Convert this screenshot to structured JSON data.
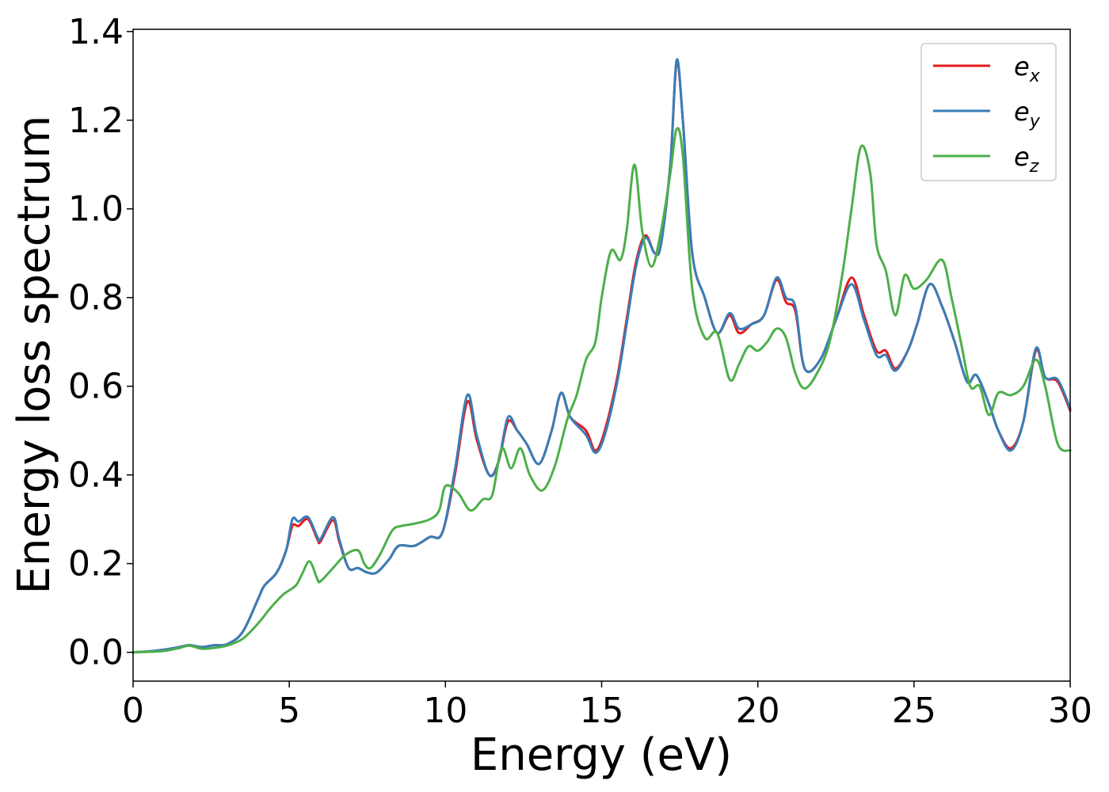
{
  "chart_data": {
    "type": "line",
    "xlabel": "Energy (eV)",
    "ylabel": "Energy loss spectrum",
    "xlim": [
      0,
      30
    ],
    "ylim": [
      -0.065,
      1.405
    ],
    "xticks": [
      0,
      5,
      10,
      15,
      20,
      25,
      30
    ],
    "xtick_labels": [
      "0",
      "5",
      "10",
      "15",
      "20",
      "25",
      "30"
    ],
    "yticks": [
      0.0,
      0.2,
      0.4,
      0.6,
      0.8,
      1.0,
      1.2,
      1.4
    ],
    "ytick_labels": [
      "0.0",
      "0.2",
      "0.4",
      "0.6",
      "0.8",
      "1.0",
      "1.2",
      "1.4"
    ],
    "grid": false,
    "legend_position": "top-right",
    "series": [
      {
        "name": "e_x",
        "legend_base": "e",
        "legend_sub": "x",
        "color": "#e41a1c",
        "points": [
          [
            0,
            0
          ],
          [
            0.5,
            0.002
          ],
          [
            1.0,
            0.006
          ],
          [
            1.5,
            0.012
          ],
          [
            1.8,
            0.016
          ],
          [
            2.2,
            0.012
          ],
          [
            2.6,
            0.016
          ],
          [
            3.0,
            0.018
          ],
          [
            3.5,
            0.045
          ],
          [
            4.0,
            0.12
          ],
          [
            4.2,
            0.15
          ],
          [
            4.6,
            0.18
          ],
          [
            4.9,
            0.23
          ],
          [
            5.1,
            0.285
          ],
          [
            5.3,
            0.285
          ],
          [
            5.6,
            0.3
          ],
          [
            5.9,
            0.255
          ],
          [
            6.0,
            0.25
          ],
          [
            6.4,
            0.298
          ],
          [
            6.6,
            0.25
          ],
          [
            6.9,
            0.19
          ],
          [
            7.2,
            0.19
          ],
          [
            7.5,
            0.18
          ],
          [
            7.8,
            0.18
          ],
          [
            8.2,
            0.21
          ],
          [
            8.5,
            0.24
          ],
          [
            9.0,
            0.24
          ],
          [
            9.5,
            0.26
          ],
          [
            9.9,
            0.27
          ],
          [
            10.3,
            0.4
          ],
          [
            10.7,
            0.565
          ],
          [
            11.0,
            0.48
          ],
          [
            11.4,
            0.4
          ],
          [
            11.7,
            0.43
          ],
          [
            12.0,
            0.52
          ],
          [
            12.3,
            0.5
          ],
          [
            12.6,
            0.47
          ],
          [
            13.0,
            0.425
          ],
          [
            13.4,
            0.5
          ],
          [
            13.7,
            0.585
          ],
          [
            14.0,
            0.53
          ],
          [
            14.5,
            0.5
          ],
          [
            14.8,
            0.455
          ],
          [
            15.1,
            0.5
          ],
          [
            15.5,
            0.62
          ],
          [
            15.8,
            0.75
          ],
          [
            16.1,
            0.88
          ],
          [
            16.4,
            0.94
          ],
          [
            16.7,
            0.9
          ],
          [
            16.9,
            0.92
          ],
          [
            17.2,
            1.1
          ],
          [
            17.4,
            1.33
          ],
          [
            17.6,
            1.2
          ],
          [
            17.9,
            0.9
          ],
          [
            18.3,
            0.8
          ],
          [
            18.7,
            0.72
          ],
          [
            19.1,
            0.76
          ],
          [
            19.4,
            0.72
          ],
          [
            19.8,
            0.74
          ],
          [
            20.2,
            0.76
          ],
          [
            20.6,
            0.84
          ],
          [
            20.9,
            0.79
          ],
          [
            21.2,
            0.77
          ],
          [
            21.5,
            0.64
          ],
          [
            22.0,
            0.66
          ],
          [
            22.5,
            0.75
          ],
          [
            23.0,
            0.845
          ],
          [
            23.4,
            0.76
          ],
          [
            23.8,
            0.68
          ],
          [
            24.1,
            0.68
          ],
          [
            24.4,
            0.64
          ],
          [
            24.8,
            0.68
          ],
          [
            25.1,
            0.74
          ],
          [
            25.5,
            0.83
          ],
          [
            25.9,
            0.78
          ],
          [
            26.3,
            0.7
          ],
          [
            26.7,
            0.61
          ],
          [
            27.0,
            0.625
          ],
          [
            27.4,
            0.56
          ],
          [
            27.7,
            0.5
          ],
          [
            28.1,
            0.46
          ],
          [
            28.5,
            0.52
          ],
          [
            28.9,
            0.68
          ],
          [
            29.2,
            0.62
          ],
          [
            29.6,
            0.61
          ],
          [
            30.0,
            0.545
          ]
        ]
      },
      {
        "name": "e_y",
        "legend_base": "e",
        "legend_sub": "y",
        "color": "#377eb8",
        "points": [
          [
            0,
            0
          ],
          [
            0.5,
            0.002
          ],
          [
            1.0,
            0.006
          ],
          [
            1.5,
            0.012
          ],
          [
            1.8,
            0.016
          ],
          [
            2.2,
            0.012
          ],
          [
            2.6,
            0.016
          ],
          [
            3.0,
            0.018
          ],
          [
            3.5,
            0.045
          ],
          [
            4.0,
            0.12
          ],
          [
            4.2,
            0.15
          ],
          [
            4.6,
            0.18
          ],
          [
            4.9,
            0.23
          ],
          [
            5.1,
            0.3
          ],
          [
            5.3,
            0.295
          ],
          [
            5.6,
            0.305
          ],
          [
            5.9,
            0.26
          ],
          [
            6.0,
            0.255
          ],
          [
            6.4,
            0.305
          ],
          [
            6.6,
            0.255
          ],
          [
            6.9,
            0.19
          ],
          [
            7.2,
            0.19
          ],
          [
            7.5,
            0.18
          ],
          [
            7.8,
            0.18
          ],
          [
            8.2,
            0.21
          ],
          [
            8.5,
            0.24
          ],
          [
            9.0,
            0.24
          ],
          [
            9.5,
            0.26
          ],
          [
            9.9,
            0.27
          ],
          [
            10.3,
            0.41
          ],
          [
            10.7,
            0.58
          ],
          [
            11.0,
            0.49
          ],
          [
            11.4,
            0.4
          ],
          [
            11.7,
            0.43
          ],
          [
            12.0,
            0.53
          ],
          [
            12.3,
            0.5
          ],
          [
            12.6,
            0.47
          ],
          [
            13.0,
            0.425
          ],
          [
            13.4,
            0.5
          ],
          [
            13.7,
            0.585
          ],
          [
            14.0,
            0.53
          ],
          [
            14.5,
            0.49
          ],
          [
            14.8,
            0.45
          ],
          [
            15.1,
            0.49
          ],
          [
            15.5,
            0.61
          ],
          [
            15.8,
            0.74
          ],
          [
            16.1,
            0.87
          ],
          [
            16.4,
            0.935
          ],
          [
            16.7,
            0.9
          ],
          [
            16.9,
            0.92
          ],
          [
            17.2,
            1.1
          ],
          [
            17.4,
            1.335
          ],
          [
            17.6,
            1.2
          ],
          [
            17.9,
            0.9
          ],
          [
            18.3,
            0.8
          ],
          [
            18.7,
            0.72
          ],
          [
            19.1,
            0.765
          ],
          [
            19.4,
            0.73
          ],
          [
            19.8,
            0.74
          ],
          [
            20.2,
            0.76
          ],
          [
            20.6,
            0.845
          ],
          [
            20.9,
            0.8
          ],
          [
            21.2,
            0.78
          ],
          [
            21.5,
            0.64
          ],
          [
            22.0,
            0.66
          ],
          [
            22.5,
            0.75
          ],
          [
            23.0,
            0.83
          ],
          [
            23.4,
            0.75
          ],
          [
            23.8,
            0.67
          ],
          [
            24.1,
            0.67
          ],
          [
            24.4,
            0.635
          ],
          [
            24.8,
            0.68
          ],
          [
            25.1,
            0.74
          ],
          [
            25.5,
            0.83
          ],
          [
            25.9,
            0.78
          ],
          [
            26.3,
            0.7
          ],
          [
            26.7,
            0.61
          ],
          [
            27.0,
            0.625
          ],
          [
            27.4,
            0.56
          ],
          [
            27.7,
            0.5
          ],
          [
            28.1,
            0.455
          ],
          [
            28.5,
            0.52
          ],
          [
            28.9,
            0.685
          ],
          [
            29.2,
            0.62
          ],
          [
            29.6,
            0.615
          ],
          [
            30.0,
            0.55
          ]
        ]
      },
      {
        "name": "e_z",
        "legend_base": "e",
        "legend_sub": "z",
        "color": "#4daf4a",
        "points": [
          [
            0,
            0
          ],
          [
            0.5,
            0.001
          ],
          [
            1.0,
            0.003
          ],
          [
            1.5,
            0.01
          ],
          [
            1.8,
            0.015
          ],
          [
            2.2,
            0.008
          ],
          [
            2.6,
            0.01
          ],
          [
            3.0,
            0.015
          ],
          [
            3.5,
            0.03
          ],
          [
            4.0,
            0.065
          ],
          [
            4.4,
            0.1
          ],
          [
            4.8,
            0.13
          ],
          [
            5.2,
            0.15
          ],
          [
            5.4,
            0.175
          ],
          [
            5.65,
            0.205
          ],
          [
            5.9,
            0.165
          ],
          [
            6.0,
            0.16
          ],
          [
            6.4,
            0.19
          ],
          [
            6.8,
            0.22
          ],
          [
            7.2,
            0.23
          ],
          [
            7.4,
            0.2
          ],
          [
            7.6,
            0.19
          ],
          [
            7.9,
            0.22
          ],
          [
            8.3,
            0.275
          ],
          [
            8.6,
            0.285
          ],
          [
            9.0,
            0.29
          ],
          [
            9.5,
            0.3
          ],
          [
            9.8,
            0.32
          ],
          [
            10.0,
            0.375
          ],
          [
            10.4,
            0.36
          ],
          [
            10.8,
            0.32
          ],
          [
            11.2,
            0.345
          ],
          [
            11.5,
            0.355
          ],
          [
            11.8,
            0.46
          ],
          [
            12.1,
            0.415
          ],
          [
            12.4,
            0.46
          ],
          [
            12.7,
            0.4
          ],
          [
            13.1,
            0.365
          ],
          [
            13.5,
            0.42
          ],
          [
            13.9,
            0.525
          ],
          [
            14.2,
            0.58
          ],
          [
            14.5,
            0.66
          ],
          [
            14.8,
            0.7
          ],
          [
            15.0,
            0.8
          ],
          [
            15.3,
            0.905
          ],
          [
            15.6,
            0.885
          ],
          [
            15.8,
            0.95
          ],
          [
            16.05,
            1.1
          ],
          [
            16.3,
            0.95
          ],
          [
            16.6,
            0.87
          ],
          [
            16.9,
            0.95
          ],
          [
            17.2,
            1.08
          ],
          [
            17.4,
            1.18
          ],
          [
            17.6,
            1.12
          ],
          [
            17.9,
            0.82
          ],
          [
            18.3,
            0.71
          ],
          [
            18.7,
            0.72
          ],
          [
            19.1,
            0.615
          ],
          [
            19.4,
            0.65
          ],
          [
            19.7,
            0.69
          ],
          [
            20.0,
            0.68
          ],
          [
            20.3,
            0.7
          ],
          [
            20.6,
            0.73
          ],
          [
            20.9,
            0.71
          ],
          [
            21.2,
            0.63
          ],
          [
            21.5,
            0.595
          ],
          [
            21.9,
            0.63
          ],
          [
            22.3,
            0.7
          ],
          [
            22.7,
            0.85
          ],
          [
            23.0,
            1.0
          ],
          [
            23.3,
            1.14
          ],
          [
            23.6,
            1.08
          ],
          [
            23.8,
            0.92
          ],
          [
            24.1,
            0.86
          ],
          [
            24.4,
            0.76
          ],
          [
            24.7,
            0.85
          ],
          [
            25.0,
            0.82
          ],
          [
            25.4,
            0.84
          ],
          [
            25.9,
            0.885
          ],
          [
            26.2,
            0.8
          ],
          [
            26.5,
            0.7
          ],
          [
            26.8,
            0.6
          ],
          [
            27.1,
            0.6
          ],
          [
            27.4,
            0.535
          ],
          [
            27.7,
            0.585
          ],
          [
            28.1,
            0.58
          ],
          [
            28.5,
            0.6
          ],
          [
            28.9,
            0.66
          ],
          [
            29.2,
            0.6
          ],
          [
            29.6,
            0.47
          ],
          [
            30.0,
            0.455
          ]
        ]
      }
    ]
  }
}
